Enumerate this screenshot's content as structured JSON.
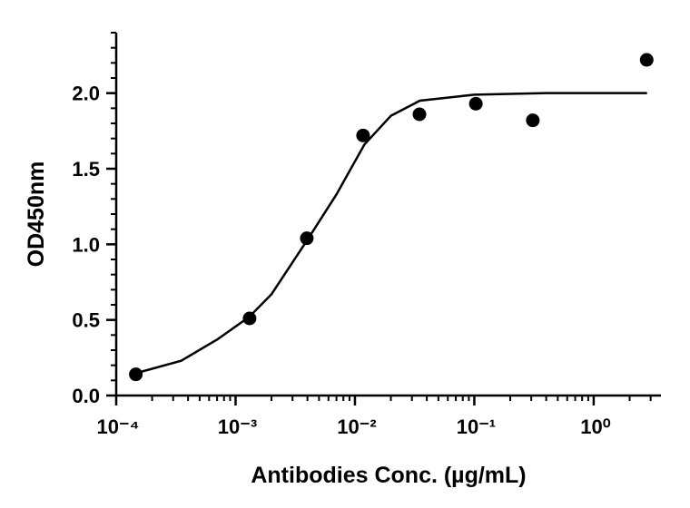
{
  "chart_data": {
    "type": "scatter",
    "x_label": "Antibodies Conc. (µg/mL)",
    "y_label": "OD450nm",
    "xscale": "log",
    "xlim": [
      0.0001,
      3.66
    ],
    "xticks": [
      {
        "value": 0.0001,
        "label": "10⁻⁴"
      },
      {
        "value": 0.001,
        "label": "10⁻³"
      },
      {
        "value": 0.01,
        "label": "10⁻²"
      },
      {
        "value": 0.1,
        "label": "10⁻¹"
      },
      {
        "value": 1,
        "label": "10⁰"
      }
    ],
    "ylim": [
      0,
      2.4
    ],
    "yticks": [
      {
        "value": 0,
        "label": "0.0"
      },
      0.5,
      {
        "value": 1,
        "label": "1.0"
      },
      1.5,
      {
        "value": 2,
        "label": "2.0"
      }
    ],
    "minor_ticks": true,
    "series": [
      {
        "kind": "points",
        "color": "#000000",
        "x": [
          0.000146,
          0.00131,
          0.00395,
          0.0117,
          0.0347,
          0.103,
          0.309,
          2.78
        ],
        "values": [
          0.14,
          0.51,
          1.04,
          1.72,
          1.86,
          1.93,
          1.82,
          2.22
        ]
      },
      {
        "kind": "line",
        "color": "#000000",
        "x": [
          0.00015,
          0.00035,
          0.0007,
          0.0013,
          0.002,
          0.004,
          0.007,
          0.012,
          0.02,
          0.035,
          0.1,
          0.4,
          2.8
        ],
        "values": [
          0.15,
          0.23,
          0.37,
          0.52,
          0.67,
          1.03,
          1.33,
          1.66,
          1.85,
          1.95,
          1.99,
          2.0,
          2.0
        ]
      }
    ]
  }
}
